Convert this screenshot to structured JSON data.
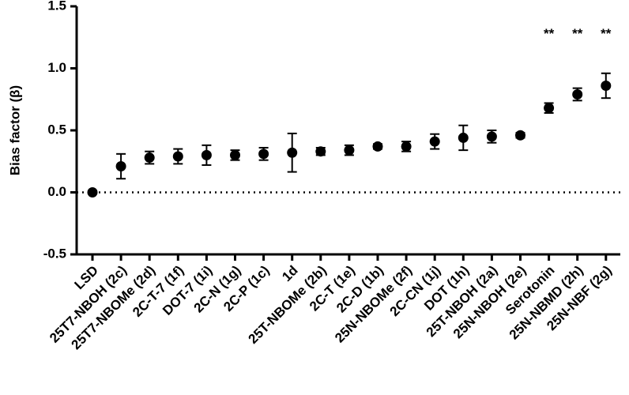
{
  "chart_data": {
    "type": "dot-errorbar",
    "y_label": "Bias factor (β)",
    "categories": [
      "LSD",
      "25T7-NBOH (2c)",
      "25T7-NBOMe (2d)",
      "2C-T-7 (1f)",
      "DOT-7 (1i)",
      "2C-N (1g)",
      "2C-P (1c)",
      "1d",
      "25T-NBOMe (2b)",
      "2C-T (1e)",
      "2C-D (1b)",
      "25N-NBOMe (2f)",
      "2C-CN (1j)",
      "DOT (1h)",
      "25T-NBOH (2a)",
      "25N-NBOH (2e)",
      "Serotonin",
      "25N-NBMD (2h)",
      "25N-NBF (2g)"
    ],
    "values": [
      0,
      0.21,
      0.28,
      0.29,
      0.3,
      0.3,
      0.31,
      0.32,
      0.33,
      0.34,
      0.37,
      0.37,
      0.41,
      0.44,
      0.45,
      0.46,
      0.68,
      0.79,
      0.86
    ],
    "errors": [
      0,
      0.1,
      0.05,
      0.06,
      0.08,
      0.04,
      0.05,
      0.155,
      0.03,
      0.04,
      0.02,
      0.04,
      0.06,
      0.1,
      0.05,
      0.02,
      0.04,
      0.05,
      0.1
    ],
    "significance": [
      null,
      null,
      null,
      null,
      null,
      null,
      null,
      null,
      null,
      null,
      null,
      null,
      null,
      null,
      null,
      null,
      "**",
      "**",
      "**"
    ],
    "color": "#000000",
    "ylim": [
      -0.5,
      1.5
    ],
    "yticks": [
      -0.5,
      {
        "value": 0,
        "label": "0.0"
      },
      0.5,
      {
        "value": 1,
        "label": "1.0"
      },
      1.5
    ]
  }
}
